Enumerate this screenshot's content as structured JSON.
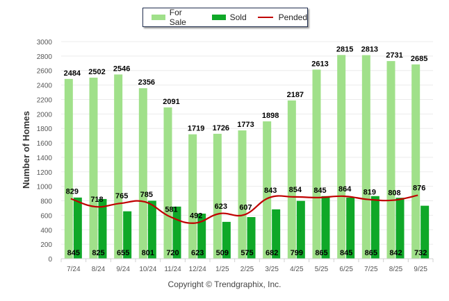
{
  "chart_data": {
    "type": "bar",
    "title": "",
    "xlabel": "",
    "ylabel": "Number of Homes",
    "ylim": [
      0,
      3000
    ],
    "yticks": [
      0,
      200,
      400,
      600,
      800,
      1000,
      1200,
      1400,
      1600,
      1800,
      2000,
      2200,
      2400,
      2600,
      2800,
      3000
    ],
    "grid": true,
    "legend_position": "top-center",
    "categories": [
      "7/24",
      "8/24",
      "9/24",
      "10/24",
      "11/24",
      "12/24",
      "1/25",
      "2/25",
      "3/25",
      "4/25",
      "5/25",
      "6/25",
      "7/25",
      "8/25",
      "9/25"
    ],
    "series": [
      {
        "name": "For Sale",
        "type": "bar",
        "color": "#a0e08a",
        "values": [
          2484,
          2502,
          2546,
          2356,
          2091,
          1719,
          1726,
          1773,
          1898,
          2187,
          2613,
          2815,
          2813,
          2731,
          2685
        ]
      },
      {
        "name": "Sold",
        "type": "bar",
        "color": "#0fa828",
        "values": [
          845,
          825,
          655,
          801,
          720,
          623,
          509,
          575,
          682,
          799,
          865,
          845,
          865,
          842,
          732
        ]
      },
      {
        "name": "Pended",
        "type": "line",
        "color": "#c00000",
        "values": [
          829,
          718,
          765,
          785,
          581,
          492,
          623,
          607,
          843,
          854,
          845,
          864,
          819,
          808,
          876
        ]
      }
    ]
  },
  "legend": {
    "items": [
      "For Sale",
      "Sold",
      "Pended"
    ]
  },
  "footer": {
    "copyright": "Copyright © Trendgraphix, Inc."
  }
}
